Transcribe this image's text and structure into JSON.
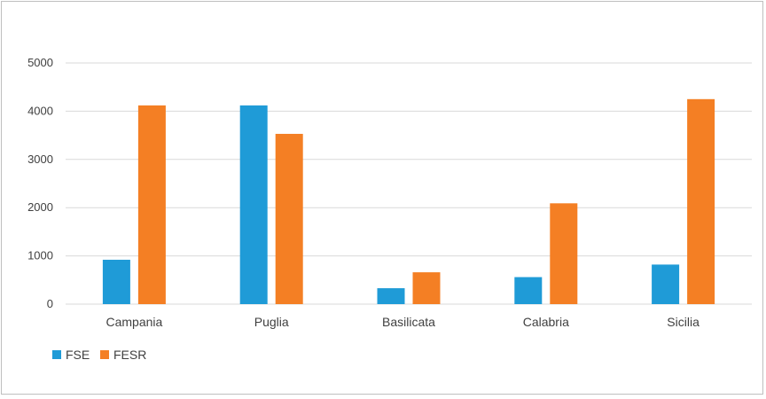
{
  "chart_data": {
    "type": "bar",
    "title": "",
    "xlabel": "",
    "ylabel": "",
    "categories": [
      "Campania",
      "Puglia",
      "Basilicata",
      "Calabria",
      "Sicilia"
    ],
    "series": [
      {
        "name": "FSE",
        "color": "#1f9bd7",
        "values": [
          920,
          4120,
          330,
          560,
          820
        ]
      },
      {
        "name": "FESR",
        "color": "#f47f24",
        "values": [
          4120,
          3530,
          660,
          2090,
          4250
        ]
      }
    ],
    "ylim": [
      0,
      5000
    ],
    "yticks": [
      0,
      1000,
      2000,
      3000,
      4000,
      5000
    ],
    "grid": true,
    "legend_position": "bottom-left",
    "colors": {
      "gridline": "#d9d9d9",
      "axis_text": "#404040"
    }
  }
}
